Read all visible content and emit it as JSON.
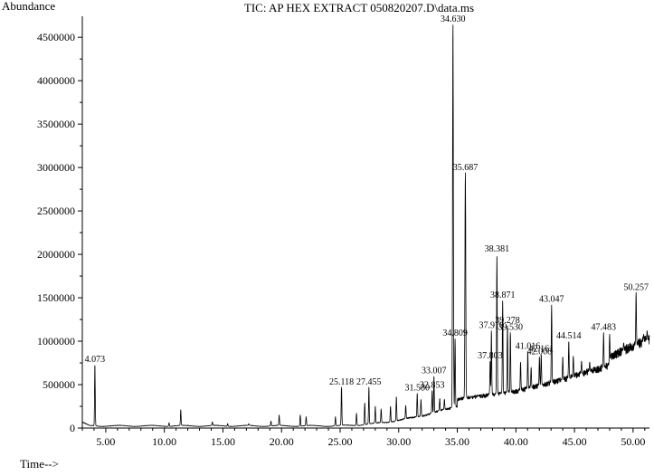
{
  "chart_data": {
    "type": "line",
    "title": "TIC: AP HEX EXTRACT 050820207.D\\data.ms",
    "ylabel": "Abundance",
    "xlabel": "Time-->",
    "xlim": [
      3.0,
      51.4
    ],
    "ylim": [
      0,
      4700000
    ],
    "xticks": [
      {
        "value": 5,
        "label": "5.00"
      },
      {
        "value": 10,
        "label": "10.00"
      },
      {
        "value": 15,
        "label": "15.00"
      },
      {
        "value": 20,
        "label": "20.00"
      },
      {
        "value": 25,
        "label": "25.00"
      },
      {
        "value": 30,
        "label": "30.00"
      },
      {
        "value": 35,
        "label": "35.00"
      },
      {
        "value": 40,
        "label": "40.00"
      },
      {
        "value": 45,
        "label": "45.00"
      },
      {
        "value": 50,
        "label": "50.00"
      }
    ],
    "yticks": [
      {
        "value": 0,
        "label": "0"
      },
      {
        "value": 500000,
        "label": "500000"
      },
      {
        "value": 1000000,
        "label": "1000000"
      },
      {
        "value": 1500000,
        "label": "1500000"
      },
      {
        "value": 2000000,
        "label": "2000000"
      },
      {
        "value": 2500000,
        "label": "2500000"
      },
      {
        "value": 3000000,
        "label": "3000000"
      },
      {
        "value": 3500000,
        "label": "3500000"
      },
      {
        "value": 4000000,
        "label": "4000000"
      },
      {
        "value": 4500000,
        "label": "4500000"
      }
    ],
    "series": [
      {
        "peaks": [
          {
            "rt": 4.073,
            "abundance": 730000,
            "label": "4.073"
          },
          {
            "rt": 25.118,
            "abundance": 470000,
            "label": "25.118"
          },
          {
            "rt": 27.455,
            "abundance": 470000,
            "label": "27.455"
          },
          {
            "rt": 31.58,
            "abundance": 400000,
            "label": "31.580"
          },
          {
            "rt": 33.007,
            "abundance": 600000,
            "label": "33.007"
          },
          {
            "rt": 32.853,
            "abundance": 430000,
            "label": "32.853"
          },
          {
            "rt": 34.63,
            "abundance": 4650000,
            "label": "34.630"
          },
          {
            "rt": 34.809,
            "abundance": 1030000,
            "label": "34.809"
          },
          {
            "rt": 35.687,
            "abundance": 2940000,
            "label": "35.687"
          },
          {
            "rt": 37.803,
            "abundance": 770000,
            "label": "37.803"
          },
          {
            "rt": 37.91,
            "abundance": 1120000,
            "label": "37.910"
          },
          {
            "rt": 38.381,
            "abundance": 2000000,
            "label": "38.381"
          },
          {
            "rt": 38.871,
            "abundance": 1470000,
            "label": "38.871"
          },
          {
            "rt": 39.278,
            "abundance": 1180000,
            "label": "39.278"
          },
          {
            "rt": 39.53,
            "abundance": 1100000,
            "label": "39.530"
          },
          {
            "rt": 41.016,
            "abundance": 880000,
            "label": "41.016"
          },
          {
            "rt": 42.008,
            "abundance": 820000,
            "label": "42.008"
          },
          {
            "rt": 42.161,
            "abundance": 850000,
            "label": "42.161"
          },
          {
            "rt": 43.047,
            "abundance": 1420000,
            "label": "43.047"
          },
          {
            "rt": 44.514,
            "abundance": 1000000,
            "label": "44.514"
          },
          {
            "rt": 47.483,
            "abundance": 1100000,
            "label": "47.483"
          },
          {
            "rt": 50.257,
            "abundance": 1560000,
            "label": "50.257"
          }
        ]
      }
    ],
    "grid": false,
    "legend": "none"
  },
  "colors": {
    "trace": "#000000",
    "axis": "#000000",
    "background": "#ffffff"
  }
}
